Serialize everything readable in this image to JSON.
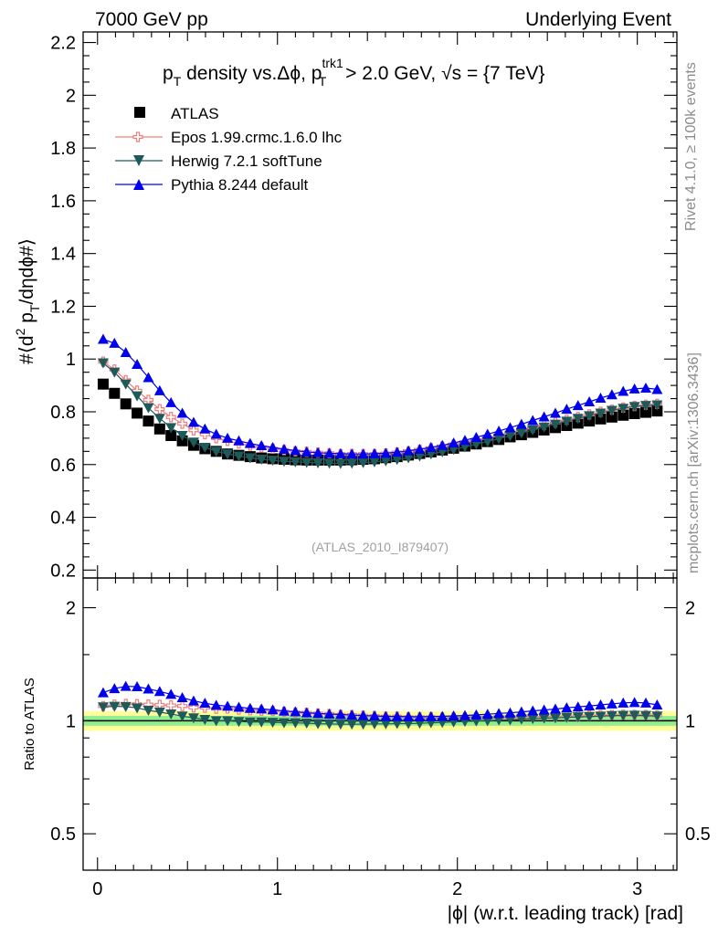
{
  "header": {
    "left": "7000 GeV pp",
    "right": "Underlying Event"
  },
  "side_labels": {
    "rivet": "Rivet 4.1.0, ≥ 100k events",
    "mcplots": "mcplots.cern.ch [arXiv:1306.3436]"
  },
  "watermark": "(ATLAS_2010_I879407)",
  "colors": {
    "atlas": "#000000",
    "epos": "#ee7f7f",
    "herwig": "#1f5a5a",
    "pythia": "#0000ee",
    "band_inner": "#90ee90",
    "band_outer": "#ffff99"
  },
  "chart_data": [
    {
      "type": "scatter",
      "panel": "main",
      "title_parts": {
        "a": "p",
        "a_sub": "T",
        "b": " density vs.Δϕ, p",
        "b_sup": "trk1",
        "b_sub": "T",
        "c": " > 2.0 GeV, ",
        "sqrt": "√s",
        "d": " = {7 TeV}"
      },
      "ylabel": "#⟨d² p_T/dηdϕ#⟩",
      "ylabel_parts": {
        "a": "#⟨d",
        "sup": "2",
        "b": " p",
        "sub": "T",
        "c": "/dηdϕ#⟩"
      },
      "xlim": [
        -0.08,
        3.22
      ],
      "ylim": [
        0.17,
        2.24
      ],
      "yticks": [
        0.2,
        0.4,
        0.6,
        0.8,
        1,
        1.2,
        1.4,
        1.6,
        1.8,
        2,
        2.2
      ],
      "ytick_labels": [
        "0.2",
        "0.4",
        "0.6",
        "0.8",
        "1",
        "1.2",
        "1.4",
        "1.6",
        "1.8",
        "2",
        "2.2"
      ],
      "legend_position": "top-left",
      "x": [
        0.0314,
        0.0942,
        0.157,
        0.2199,
        0.2827,
        0.3456,
        0.4084,
        0.4712,
        0.5341,
        0.5969,
        0.6597,
        0.7226,
        0.7854,
        0.8482,
        0.9111,
        0.9739,
        1.0367,
        1.0996,
        1.1624,
        1.2252,
        1.2881,
        1.3509,
        1.4137,
        1.4765,
        1.5394,
        1.6022,
        1.665,
        1.7279,
        1.7907,
        1.8535,
        1.9164,
        1.9792,
        2.042,
        2.1049,
        2.1677,
        2.2305,
        2.2934,
        2.3562,
        2.419,
        2.4819,
        2.5447,
        2.6075,
        2.6704,
        2.7332,
        2.796,
        2.8588,
        2.9217,
        2.9845,
        3.0473,
        3.1102
      ],
      "series": [
        {
          "name": "ATLAS",
          "marker": "square",
          "values": [
            0.905,
            0.87,
            0.83,
            0.795,
            0.765,
            0.735,
            0.71,
            0.69,
            0.673,
            0.66,
            0.65,
            0.64,
            0.635,
            0.63,
            0.625,
            0.622,
            0.62,
            0.618,
            0.617,
            0.617,
            0.617,
            0.617,
            0.618,
            0.62,
            0.622,
            0.626,
            0.63,
            0.636,
            0.642,
            0.648,
            0.655,
            0.662,
            0.67,
            0.678,
            0.687,
            0.695,
            0.705,
            0.713,
            0.722,
            0.731,
            0.74,
            0.748,
            0.757,
            0.765,
            0.773,
            0.78,
            0.787,
            0.793,
            0.798,
            0.803
          ]
        },
        {
          "name": "Epos 1.99.crmc.1.6.0 lhc",
          "marker": "open-cross",
          "values": [
            0.99,
            0.96,
            0.92,
            0.88,
            0.845,
            0.81,
            0.78,
            0.755,
            0.73,
            0.715,
            0.7,
            0.69,
            0.68,
            0.672,
            0.665,
            0.66,
            0.655,
            0.65,
            0.648,
            0.645,
            0.643,
            0.64,
            0.64,
            0.64,
            0.64,
            0.642,
            0.646,
            0.65,
            0.656,
            0.662,
            0.668,
            0.675,
            0.683,
            0.692,
            0.701,
            0.71,
            0.72,
            0.73,
            0.74,
            0.75,
            0.76,
            0.77,
            0.78,
            0.79,
            0.8,
            0.808,
            0.816,
            0.822,
            0.827,
            0.83
          ]
        },
        {
          "name": "Herwig 7.2.1 softTune",
          "marker": "triangle-down",
          "values": [
            0.985,
            0.95,
            0.905,
            0.86,
            0.815,
            0.775,
            0.74,
            0.71,
            0.685,
            0.665,
            0.65,
            0.64,
            0.632,
            0.625,
            0.62,
            0.616,
            0.612,
            0.61,
            0.608,
            0.606,
            0.605,
            0.604,
            0.605,
            0.607,
            0.61,
            0.614,
            0.619,
            0.625,
            0.632,
            0.64,
            0.648,
            0.657,
            0.667,
            0.677,
            0.687,
            0.698,
            0.709,
            0.72,
            0.731,
            0.742,
            0.753,
            0.764,
            0.775,
            0.785,
            0.795,
            0.805,
            0.813,
            0.82,
            0.824,
            0.826
          ]
        },
        {
          "name": "Pythia 8.244 default",
          "marker": "triangle-up",
          "values": [
            1.075,
            1.06,
            1.025,
            0.98,
            0.93,
            0.88,
            0.835,
            0.795,
            0.76,
            0.735,
            0.715,
            0.7,
            0.69,
            0.68,
            0.672,
            0.665,
            0.658,
            0.653,
            0.648,
            0.645,
            0.643,
            0.641,
            0.64,
            0.64,
            0.641,
            0.643,
            0.647,
            0.652,
            0.658,
            0.665,
            0.673,
            0.682,
            0.692,
            0.703,
            0.715,
            0.727,
            0.74,
            0.753,
            0.767,
            0.781,
            0.795,
            0.81,
            0.824,
            0.838,
            0.852,
            0.865,
            0.878,
            0.887,
            0.89,
            0.885
          ]
        }
      ]
    },
    {
      "type": "scatter",
      "panel": "ratio",
      "ylabel": "Ratio to ATLAS",
      "xlabel": "|ϕ| (w.r.t. leading track) [rad]",
      "xlim": [
        -0.08,
        3.22
      ],
      "ylim": [
        0.4,
        2.4
      ],
      "yscale": "log",
      "yticks": [
        0.5,
        1,
        2
      ],
      "ytick_labels": [
        "0.5",
        "1",
        "2"
      ],
      "xticks": [
        0,
        1,
        2,
        3
      ],
      "xtick_labels": [
        "0",
        "1",
        "2",
        "3"
      ],
      "band_inner": [
        0.97,
        1.03
      ],
      "band_outer": [
        0.94,
        1.06
      ]
    }
  ]
}
